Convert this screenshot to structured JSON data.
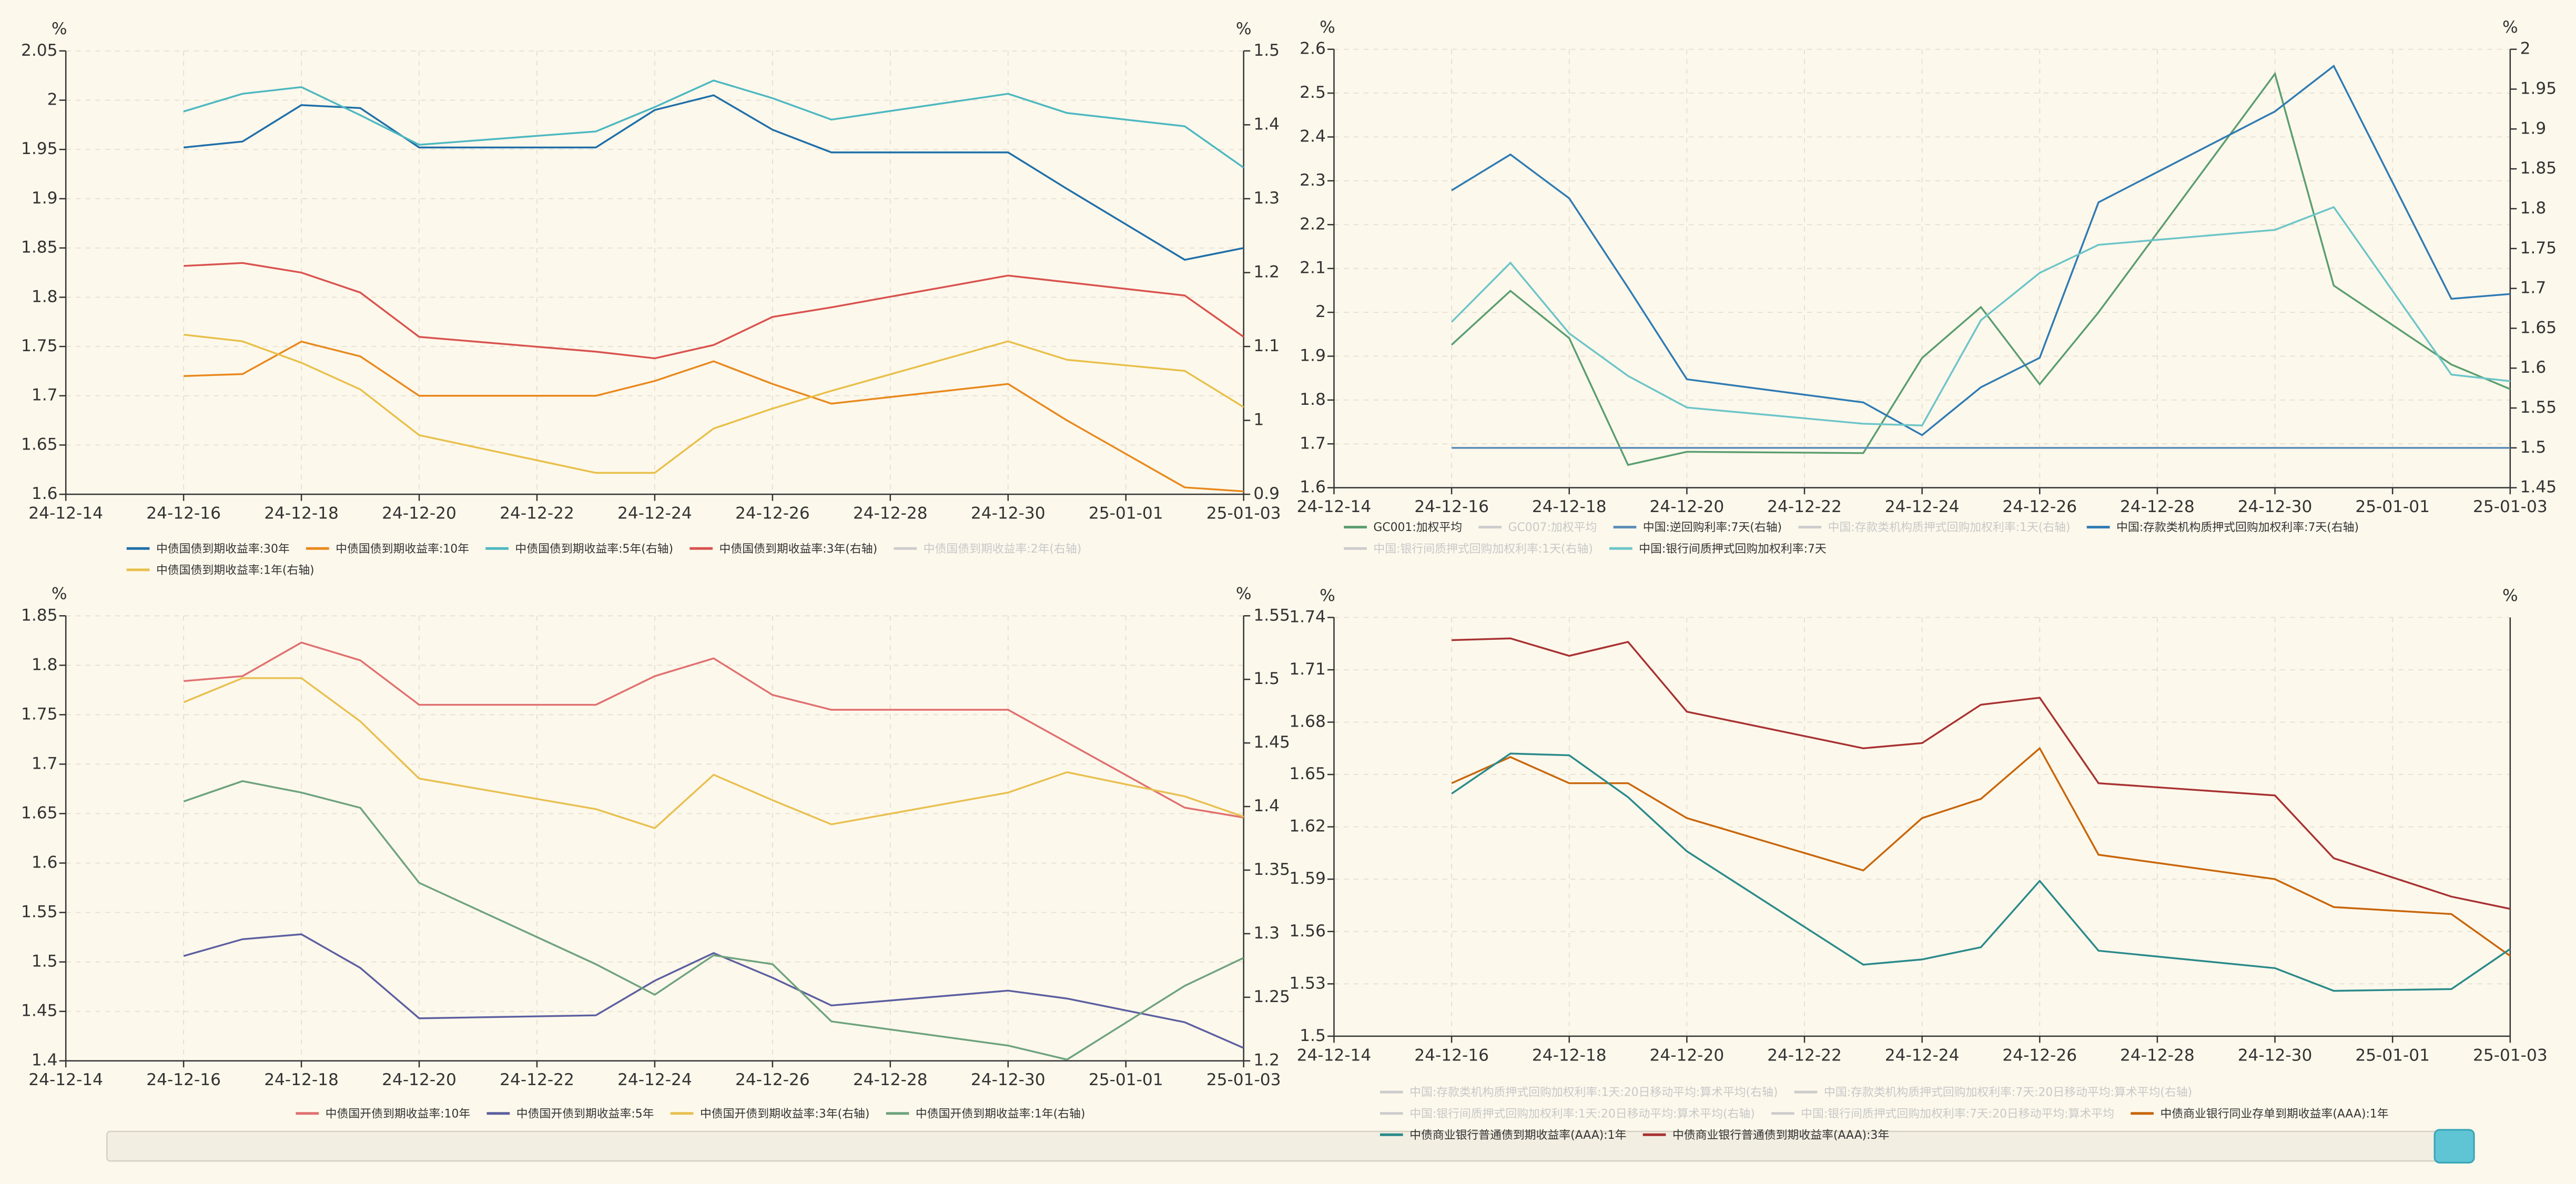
{
  "chart_data": [
    {
      "type": "line",
      "y_unit": "%",
      "y2_unit": "%",
      "grid": true,
      "x": [
        "24-12-16",
        "24-12-17",
        "24-12-18",
        "24-12-19",
        "24-12-20",
        "24-12-23",
        "24-12-24",
        "24-12-25",
        "24-12-26",
        "24-12-27",
        "24-12-30",
        "24-12-31",
        "25-01-02",
        "25-01-03"
      ],
      "xlim": [
        "24-12-14",
        "25-01-03"
      ],
      "xticks": [
        "24-12-14",
        "24-12-16",
        "24-12-18",
        "24-12-20",
        "24-12-22",
        "24-12-24",
        "24-12-26",
        "24-12-28",
        "24-12-30",
        "25-01-01",
        "25-01-03"
      ],
      "ylim": [
        1.6,
        2.05
      ],
      "yticks": [
        1.6,
        1.65,
        1.7,
        1.75,
        1.8,
        1.85,
        1.9,
        1.95,
        2,
        2.05
      ],
      "y2lim": [
        0.9,
        1.5
      ],
      "y2ticks": [
        0.9,
        1,
        1.1,
        1.2,
        1.3,
        1.4,
        1.5
      ],
      "series": [
        {
          "name": "中债国债到期收益率:30年",
          "color": "#1f6fa8",
          "values": [
            1.952,
            1.958,
            1.995,
            1.992,
            1.952,
            1.952,
            1.99,
            2.005,
            1.97,
            1.947,
            1.947,
            1.91,
            1.838,
            1.85
          ]
        },
        {
          "name": "中债国债到期收益率:10年",
          "color": "#e8891d",
          "values": [
            1.72,
            1.722,
            1.755,
            1.74,
            1.7,
            1.7,
            1.715,
            1.735,
            1.712,
            1.692,
            1.712,
            1.675,
            1.607,
            1.603
          ]
        },
        {
          "name": "中债国债到期收益率:5年(右轴)",
          "color": "#4db8c0",
          "axis": "y2",
          "values": [
            1.418,
            1.442,
            1.451,
            1.413,
            1.373,
            1.391,
            1.424,
            1.46,
            1.436,
            1.407,
            1.442,
            1.416,
            1.398,
            1.342
          ]
        },
        {
          "name": "中债国债到期收益率:3年(右轴)",
          "color": "#d9534f",
          "axis": "y2",
          "values": [
            1.209,
            1.213,
            1.2,
            1.173,
            1.113,
            1.093,
            1.084,
            1.102,
            1.14,
            1.153,
            1.196,
            1.187,
            1.169,
            1.113
          ]
        },
        {
          "name": "中债国债到期收益率:2年(右轴)",
          "color": "#cccccc",
          "axis": "y2",
          "hidden": true
        },
        {
          "name": "中债国债到期收益率:1年(右轴)",
          "color": "#e8c04a",
          "axis": "y2",
          "values": [
            1.116,
            1.107,
            1.078,
            1.042,
            0.98,
            0.929,
            0.929,
            0.989,
            1.016,
            1.04,
            1.107,
            1.082,
            1.067,
            1.018
          ]
        }
      ]
    },
    {
      "type": "line",
      "y_unit": "%",
      "y2_unit": "%",
      "grid": true,
      "x": [
        "24-12-16",
        "24-12-17",
        "24-12-18",
        "24-12-19",
        "24-12-20",
        "24-12-23",
        "24-12-24",
        "24-12-25",
        "24-12-26",
        "24-12-27",
        "24-12-30",
        "24-12-31",
        "25-01-02",
        "25-01-03"
      ],
      "xlim": [
        "24-12-14",
        "25-01-03"
      ],
      "xticks": [
        "24-12-14",
        "24-12-16",
        "24-12-18",
        "24-12-20",
        "24-12-22",
        "24-12-24",
        "24-12-26",
        "24-12-28",
        "24-12-30",
        "25-01-01",
        "25-01-03"
      ],
      "ylim": [
        1.6,
        2.6
      ],
      "yticks": [
        1.6,
        1.7,
        1.8,
        1.9,
        2,
        2.1,
        2.2,
        2.3,
        2.4,
        2.5,
        2.6
      ],
      "y2lim": [
        1.45,
        2
      ],
      "y2ticks": [
        1.45,
        1.5,
        1.55,
        1.6,
        1.65,
        1.7,
        1.75,
        1.8,
        1.85,
        1.9,
        1.95,
        2
      ],
      "series": [
        {
          "name": "GC001:加权平均",
          "color": "#5a9e6f",
          "values": [
            1.926,
            2.049,
            1.941,
            1.652,
            1.682,
            1.679,
            1.896,
            2.012,
            1.836,
            2.0,
            2.544,
            2.061,
            1.881,
            1.825
          ]
        },
        {
          "name": "GC007:加权平均",
          "color": "#cccccc",
          "hidden": true
        },
        {
          "name": "中国:逆回购利率:7天(右轴)",
          "color": "#5b8db8",
          "axis": "y2",
          "values": [
            1.5,
            1.5,
            1.5,
            1.5,
            1.5,
            1.5,
            1.5,
            1.5,
            1.5,
            1.5,
            1.5,
            1.5,
            1.5,
            1.5
          ]
        },
        {
          "name": "中国:存款类机构质押式回购加权利率:1天(右轴)",
          "color": "#cccccc",
          "axis": "y2",
          "hidden": true
        },
        {
          "name": "中国:存款类机构质押式回购加权利率:7天(右轴)",
          "color": "#2f7bb3",
          "axis": "y2",
          "values": [
            1.823,
            1.868,
            1.813,
            1.701,
            1.586,
            1.557,
            1.516,
            1.576,
            1.613,
            1.808,
            1.922,
            1.979,
            1.687,
            1.693
          ]
        },
        {
          "name": "中国:银行间质押式回购加权利率:1天(右轴)",
          "color": "#cccccc",
          "axis": "y2",
          "hidden": true
        },
        {
          "name": "中国:银行间质押式回购加权利率:7天",
          "color": "#6cc5c8",
          "values": [
            1.978,
            2.113,
            1.952,
            1.855,
            1.783,
            1.746,
            1.742,
            1.982,
            2.09,
            2.154,
            2.188,
            2.24,
            1.858,
            1.843
          ]
        }
      ]
    },
    {
      "type": "line",
      "y_unit": "%",
      "y2_unit": "%",
      "grid": true,
      "x": [
        "24-12-16",
        "24-12-17",
        "24-12-18",
        "24-12-19",
        "24-12-20",
        "24-12-23",
        "24-12-24",
        "24-12-25",
        "24-12-26",
        "24-12-27",
        "24-12-30",
        "24-12-31",
        "25-01-02",
        "25-01-03"
      ],
      "xlim": [
        "24-12-14",
        "25-01-03"
      ],
      "xticks": [
        "24-12-14",
        "24-12-16",
        "24-12-18",
        "24-12-20",
        "24-12-22",
        "24-12-24",
        "24-12-26",
        "24-12-28",
        "24-12-30",
        "25-01-01",
        "25-01-03"
      ],
      "ylim": [
        1.4,
        1.85
      ],
      "yticks": [
        1.4,
        1.45,
        1.5,
        1.55,
        1.6,
        1.65,
        1.7,
        1.75,
        1.8,
        1.85
      ],
      "y2lim": [
        1.2,
        1.55
      ],
      "y2ticks": [
        1.2,
        1.25,
        1.3,
        1.35,
        1.4,
        1.45,
        1.5,
        1.55
      ],
      "series": [
        {
          "name": "中债国开债到期收益率:10年",
          "color": "#e07070",
          "values": [
            1.784,
            1.789,
            1.823,
            1.805,
            1.76,
            1.76,
            1.789,
            1.807,
            1.77,
            1.755,
            1.755,
            1.722,
            1.656,
            1.646
          ]
        },
        {
          "name": "中债国开债到期收益率:5年",
          "color": "#5c5fa0",
          "values": [
            1.506,
            1.523,
            1.528,
            1.494,
            1.443,
            1.446,
            1.481,
            1.509,
            1.484,
            1.456,
            1.471,
            1.463,
            1.439,
            1.413
          ]
        },
        {
          "name": "中债国开债到期收益率:3年(右轴)",
          "color": "#e8c050",
          "axis": "y2",
          "values": [
            1.482,
            1.501,
            1.501,
            1.467,
            1.422,
            1.398,
            1.383,
            1.425,
            1.405,
            1.386,
            1.411,
            1.427,
            1.408,
            1.392
          ]
        },
        {
          "name": "中债国开债到期收益率:1年(右轴)",
          "color": "#6da37c",
          "axis": "y2",
          "values": [
            1.404,
            1.42,
            1.411,
            1.399,
            1.34,
            1.276,
            1.252,
            1.283,
            1.276,
            1.231,
            1.212,
            1.201,
            1.259,
            1.281
          ]
        }
      ]
    },
    {
      "type": "line",
      "y_unit": "%",
      "y2_unit": "%",
      "grid": true,
      "x": [
        "24-12-16",
        "24-12-17",
        "24-12-18",
        "24-12-19",
        "24-12-20",
        "24-12-23",
        "24-12-24",
        "24-12-25",
        "24-12-26",
        "24-12-27",
        "24-12-30",
        "24-12-31",
        "25-01-02",
        "25-01-03"
      ],
      "xlim": [
        "24-12-14",
        "25-01-03"
      ],
      "xticks": [
        "24-12-14",
        "24-12-16",
        "24-12-18",
        "24-12-20",
        "24-12-22",
        "24-12-24",
        "24-12-26",
        "24-12-28",
        "24-12-30",
        "25-01-01",
        "25-01-03"
      ],
      "ylim": [
        1.5,
        1.74
      ],
      "yticks": [
        1.5,
        1.53,
        1.56,
        1.59,
        1.62,
        1.65,
        1.68,
        1.71,
        1.74
      ],
      "series": [
        {
          "name": "中国:存款类机构质押式回购加权利率:1天:20日移动平均:算术平均(右轴)",
          "color": "#cccccc",
          "axis": "y2",
          "hidden": true
        },
        {
          "name": "中国:存款类机构质押式回购加权利率:7天:20日移动平均:算术平均(右轴)",
          "color": "#cccccc",
          "axis": "y2",
          "hidden": true
        },
        {
          "name": "中国:银行间质押式回购加权利率:1天:20日移动平均:算术平均(右轴)",
          "color": "#cccccc",
          "axis": "y2",
          "hidden": true
        },
        {
          "name": "中国:银行间质押式回购加权利率:7天:20日移动平均:算术平均",
          "color": "#cccccc",
          "hidden": true
        },
        {
          "name": "中债商业银行同业存单到期收益率(AAA):1年",
          "color": "#c8660a",
          "values": [
            1.645,
            1.66,
            1.645,
            1.645,
            1.625,
            1.595,
            1.625,
            1.636,
            1.665,
            1.604,
            1.59,
            1.574,
            1.57,
            1.546
          ]
        },
        {
          "name": "中债商业银行普通债到期收益率(AAA):1年",
          "color": "#2a8a8a",
          "values": [
            1.639,
            1.662,
            1.661,
            1.637,
            1.606,
            1.541,
            1.544,
            1.551,
            1.589,
            1.549,
            1.539,
            1.526,
            1.527,
            1.55
          ]
        },
        {
          "name": "中债商业银行普通债到期收益率(AAA):3年",
          "color": "#a83232",
          "values": [
            1.727,
            1.728,
            1.718,
            1.726,
            1.686,
            1.665,
            1.668,
            1.69,
            1.694,
            1.645,
            1.638,
            1.602,
            1.58,
            1.573
          ]
        }
      ]
    }
  ]
}
